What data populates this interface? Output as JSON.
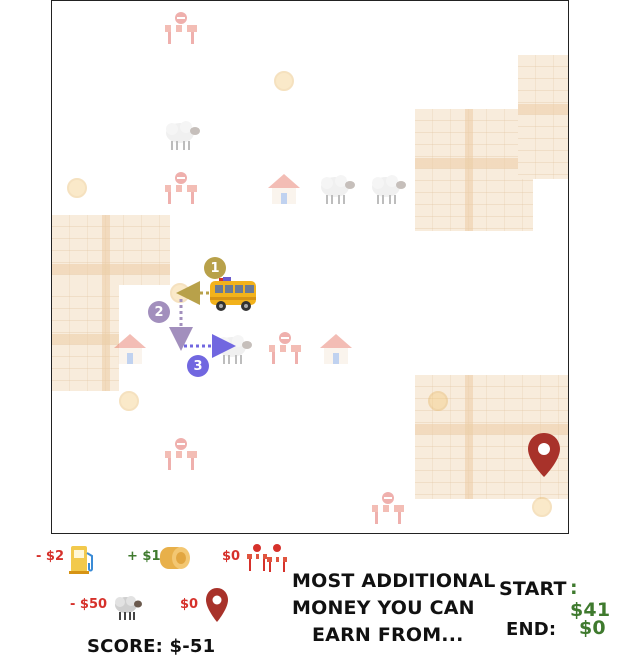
{
  "legend": {
    "gas_cost": "- $2",
    "hay_reward": "+ $1",
    "barrier_cost": "$0",
    "sheep_cost": "- $50",
    "destination_cost": "$0"
  },
  "steps": [
    "1",
    "2",
    "3"
  ],
  "question": {
    "line1": "MOST ADDITIONAL",
    "line2": "MONEY YOU CAN",
    "line3": "EARN FROM..."
  },
  "start": {
    "label": "START",
    "value": ": $41"
  },
  "end": {
    "label": "END:",
    "value": "$0"
  },
  "score": {
    "label": "SCORE: $-51"
  },
  "colors": {
    "step1": "#b8a14a",
    "step2": "#a28fbd",
    "step3": "#7167e0",
    "pin": "#a8322a",
    "money_green": "#3f7a2e",
    "cost_red": "#d6312b"
  }
}
